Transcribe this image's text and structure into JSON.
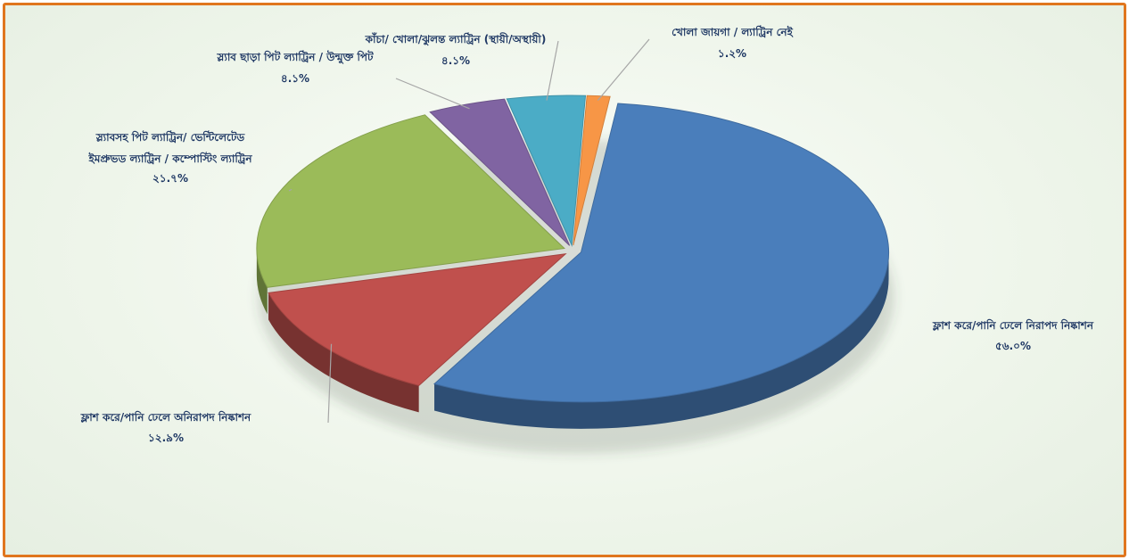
{
  "chart_data": {
    "type": "pie",
    "title": "",
    "three_d": true,
    "slices": [
      {
        "label": "ফ্লাশ করে/পানি ঢেলে নিরাপদ নিষ্কাশন",
        "value_label": "৫৬.০%",
        "value": 56.0,
        "color": "#4a7ebb"
      },
      {
        "label": "ফ্লাশ করে/পানি ঢেলে অনিরাপদ নিষ্কাশন",
        "value_label": "১২.৯%",
        "value": 12.9,
        "color": "#c0504d"
      },
      {
        "label_lines": [
          "স্ল্যাবসহ পিট ল্যাট্রিন/ ভেন্টিলেটেড",
          "ইমপ্রুভড ল্যাট্রিন   / কম্পোস্টিং ল্যাট্রিন"
        ],
        "value_label": "২১.৭%",
        "value": 21.7,
        "color": "#9bbb59"
      },
      {
        "label": "স্ল্যাব ছাড়া পিট ল্যাট্রিন / উন্মুক্ত পিট",
        "value_label": "৪.১%",
        "value": 4.1,
        "color": "#8064a2"
      },
      {
        "label": "কাঁচা/ খোলা/ঝুলন্ত ল্যাট্রিন (স্থায়ী/অস্থায়ী)",
        "value_label": "৪.১%",
        "value": 4.1,
        "color": "#4bacc6"
      },
      {
        "label": "খোলা জায়গা / ল্যাট্রিন নেই",
        "value_label": "১.২%",
        "value": 1.2,
        "color": "#f79646"
      }
    ]
  }
}
